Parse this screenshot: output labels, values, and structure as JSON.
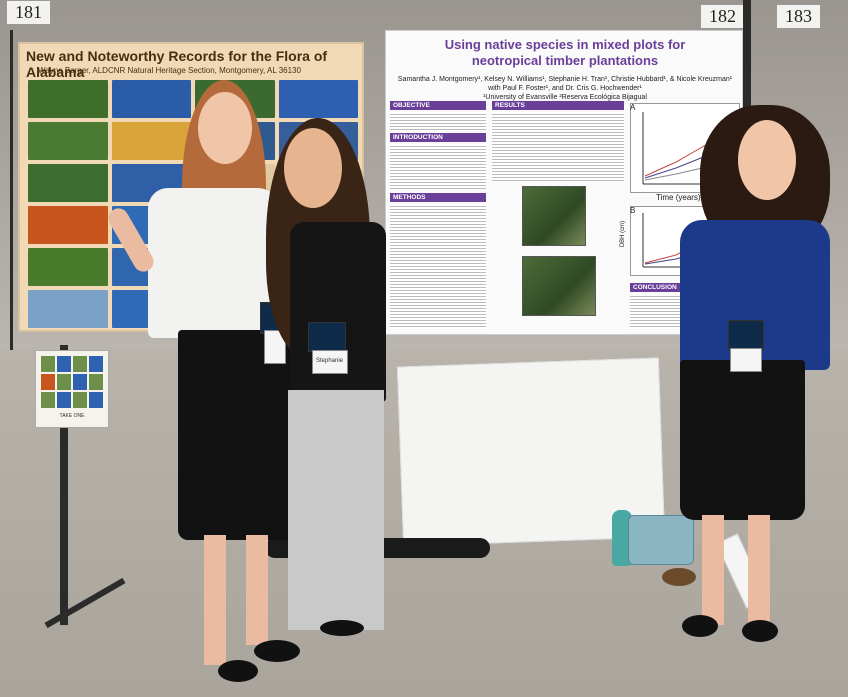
{
  "booth_numbers": [
    "181",
    "182",
    "183"
  ],
  "left_poster": {
    "title": "New and Noteworthy Records for the Flora of Alabama",
    "subtitle": "Wayne Barger, ALDCNR Natural Heritage Section, Montgomery, AL 36130"
  },
  "main_poster": {
    "title_line1": "Using native species in mixed plots for",
    "title_line2": "neotropical timber plantations",
    "authors_line1": "Samantha J. Montgomery¹, Kelsey N. Williams¹, Stephanie H. Tran¹, Christie Hubbard¹, & Nicole Kreuzman¹",
    "authors_line2": "with Paul F. Foster¹, and Dr. Cris G. Hochwender¹",
    "affiliation": "¹University of Evansville  ²Reserva Ecológica Bijagual",
    "sections": {
      "objective": "OBJECTIVE",
      "introduction": "INTRODUCTION",
      "methods": "METHODS",
      "results": "RESULTS",
      "conclusion": "CONCLUSION"
    },
    "graph_labels": {
      "panel_a": "A",
      "panel_b": "B",
      "y_axis": "DBH (cm)",
      "x_axis": "Time (years)"
    }
  },
  "handout_label": "TAKE ONE",
  "name_badges": [
    "",
    "Stephanie",
    ""
  ],
  "colors": {
    "poster_accent": "#6a3f9a",
    "left_poster_bg": "#f1d9b6",
    "badge": "#0f2b4a"
  }
}
